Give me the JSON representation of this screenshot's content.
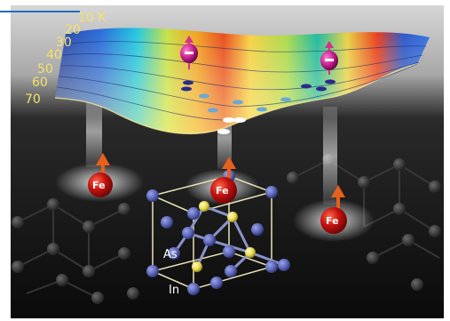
{
  "temperature_labels": [
    "10 K",
    "20",
    "30",
    "40",
    "50",
    "60",
    "70"
  ],
  "iron_label": "Fe",
  "arsenic_label": "As",
  "indium_label": "In",
  "colors": {
    "background_top": "#cfcfcf",
    "background_bottom": "#0d0d0d",
    "frame_line": "#1f6fb8",
    "fe_atom": "#c4120e",
    "spin_arrow": "#e8601c",
    "in_atom": "#5a64b4",
    "as_atom": "#e6d84a",
    "electron": "#c21a8a"
  }
}
